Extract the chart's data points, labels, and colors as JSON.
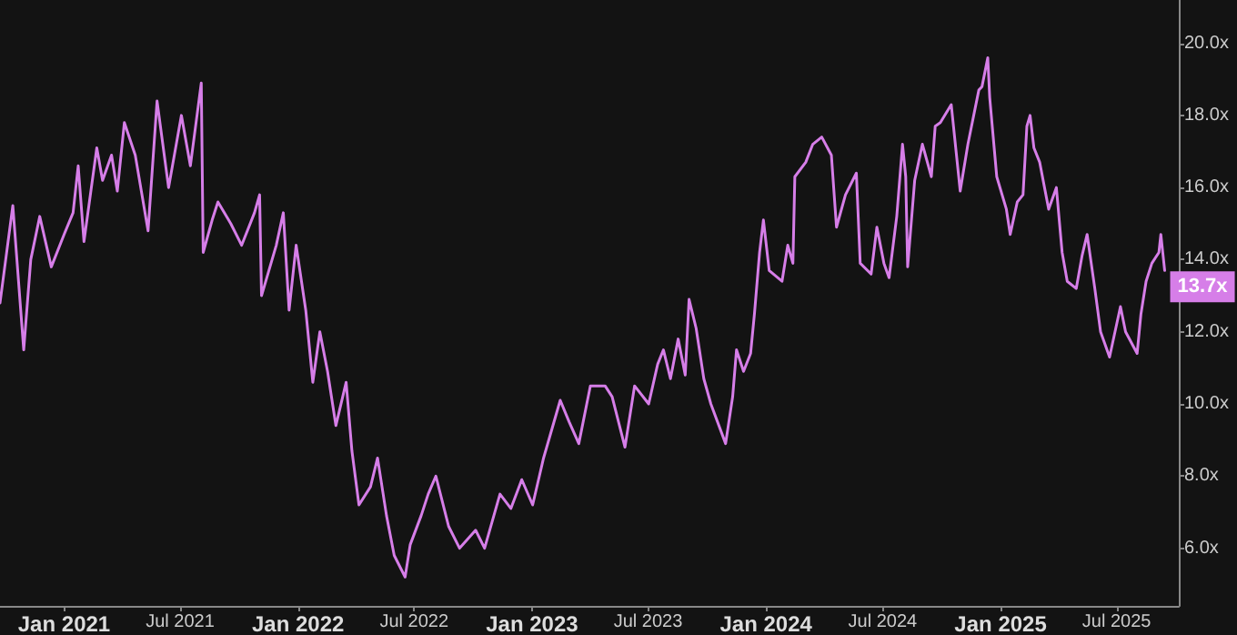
{
  "chart_data": {
    "type": "line",
    "grid": false,
    "marker": "none",
    "line_style": "solid",
    "xlim": [
      "2020-09-23",
      "2025-10-06"
    ],
    "xticks": [
      {
        "value": "2021-01-01",
        "label": "Jan 2021"
      },
      {
        "value": "2021-07-01",
        "label": "Jul 2021"
      },
      {
        "value": "2022-01-01",
        "label": "Jan 2022"
      },
      {
        "value": "2022-07-01",
        "label": "Jul 2022"
      },
      {
        "value": "2023-01-01",
        "label": "Jan 2023"
      },
      {
        "value": "2023-07-01",
        "label": "Jul 2023"
      },
      {
        "value": "2024-01-01",
        "label": "Jan 2024"
      },
      {
        "value": "2024-07-01",
        "label": "Jul 2024"
      },
      {
        "value": "2025-01-01",
        "label": "Jan 2025"
      },
      {
        "value": "2025-07-01",
        "label": "Jul 2025"
      }
    ],
    "ylim": [
      4.4,
      21.2
    ],
    "yticks": [
      {
        "value": 6,
        "label": "6.0x"
      },
      {
        "value": 8,
        "label": "8.0x"
      },
      {
        "value": 10,
        "label": "10.0x"
      },
      {
        "value": 12,
        "label": "12.0x"
      },
      {
        "value": 14,
        "label": "14.0x"
      },
      {
        "value": 16,
        "label": "16.0x"
      },
      {
        "value": 18,
        "label": "18.0x"
      },
      {
        "value": 20,
        "label": "20.0x"
      }
    ],
    "x": [
      "2020-09-23",
      "2020-10-13",
      "2020-10-30",
      "2020-11-10",
      "2020-11-24",
      "2020-12-12",
      "2021-01-01",
      "2021-01-15",
      "2021-01-23",
      "2021-02-01",
      "2021-02-21",
      "2021-03-02",
      "2021-03-16",
      "2021-03-25",
      "2021-04-05",
      "2021-04-22",
      "2021-05-12",
      "2021-05-26",
      "2021-06-13",
      "2021-07-03",
      "2021-07-17",
      "2021-08-03",
      "2021-08-06",
      "2021-08-20",
      "2021-08-29",
      "2021-09-18",
      "2021-10-05",
      "2021-10-25",
      "2021-11-02",
      "2021-11-05",
      "2021-11-28",
      "2021-12-09",
      "2021-12-18",
      "2021-12-29",
      "2022-01-13",
      "2022-01-24",
      "2022-02-04",
      "2022-02-16",
      "2022-03-01",
      "2022-03-17",
      "2022-03-26",
      "2022-04-06",
      "2022-04-24",
      "2022-05-05",
      "2022-05-19",
      "2022-05-31",
      "2022-06-17",
      "2022-06-25",
      "2022-07-12",
      "2022-07-23",
      "2022-08-04",
      "2022-08-24",
      "2022-09-10",
      "2022-10-05",
      "2022-10-19",
      "2022-11-12",
      "2022-11-29",
      "2022-12-16",
      "2023-01-02",
      "2023-01-19",
      "2023-02-14",
      "2023-02-28",
      "2023-03-15",
      "2023-04-02",
      "2023-04-25",
      "2023-05-06",
      "2023-05-26",
      "2023-06-10",
      "2023-07-02",
      "2023-07-16",
      "2023-07-25",
      "2023-08-05",
      "2023-08-17",
      "2023-08-28",
      "2023-09-03",
      "2023-09-14",
      "2023-09-26",
      "2023-10-07",
      "2023-10-30",
      "2023-11-10",
      "2023-11-16",
      "2023-11-27",
      "2023-12-08",
      "2023-12-14",
      "2023-12-22",
      "2023-12-28",
      "2024-01-06",
      "2024-01-26",
      "2024-02-04",
      "2024-02-12",
      "2024-02-15",
      "2024-03-03",
      "2024-03-14",
      "2024-03-28",
      "2024-04-12",
      "2024-04-20",
      "2024-05-04",
      "2024-05-21",
      "2024-05-27",
      "2024-06-13",
      "2024-06-22",
      "2024-07-03",
      "2024-07-11",
      "2024-07-23",
      "2024-08-01",
      "2024-08-06",
      "2024-08-09",
      "2024-08-20",
      "2024-09-01",
      "2024-09-15",
      "2024-09-21",
      "2024-09-29",
      "2024-10-16",
      "2024-10-30",
      "2024-11-11",
      "2024-11-28",
      "2024-12-03",
      "2024-12-12",
      "2024-12-15",
      "2024-12-26",
      "2025-01-10",
      "2025-01-16",
      "2025-01-27",
      "2025-02-05",
      "2025-02-11",
      "2025-02-16",
      "2025-02-22",
      "2025-03-03",
      "2025-03-17",
      "2025-03-29",
      "2025-04-07",
      "2025-04-15",
      "2025-04-29",
      "2025-05-08",
      "2025-05-16",
      "2025-05-28",
      "2025-06-06",
      "2025-06-20",
      "2025-07-07",
      "2025-07-15",
      "2025-08-02",
      "2025-08-08",
      "2025-08-16",
      "2025-08-25",
      "2025-09-05",
      "2025-09-08",
      "2025-09-14"
    ],
    "series": [
      {
        "color": "#d67ee8",
        "values": [
          12.8,
          15.5,
          11.5,
          14.0,
          15.2,
          13.8,
          14.7,
          15.3,
          16.6,
          14.5,
          17.1,
          16.2,
          16.9,
          15.9,
          17.8,
          16.9,
          14.8,
          18.4,
          16.0,
          18.0,
          16.6,
          18.9,
          14.2,
          15.1,
          15.6,
          15.0,
          14.4,
          15.3,
          15.8,
          13.0,
          14.4,
          15.3,
          12.6,
          14.4,
          12.6,
          10.6,
          12.0,
          10.9,
          9.4,
          10.6,
          8.7,
          7.2,
          7.7,
          8.5,
          6.9,
          5.8,
          5.2,
          6.1,
          6.9,
          7.5,
          8.0,
          6.6,
          6.0,
          6.5,
          6.0,
          7.5,
          7.1,
          7.9,
          7.2,
          8.5,
          10.1,
          9.5,
          8.9,
          10.5,
          10.5,
          10.2,
          8.8,
          10.5,
          10.0,
          11.1,
          11.5,
          10.7,
          11.8,
          10.8,
          12.9,
          12.1,
          10.7,
          10.0,
          8.9,
          10.2,
          11.5,
          10.9,
          11.4,
          12.5,
          14.2,
          15.1,
          13.7,
          13.4,
          14.4,
          13.9,
          16.3,
          16.7,
          17.2,
          17.4,
          16.9,
          14.9,
          15.8,
          16.4,
          13.9,
          13.6,
          14.9,
          13.9,
          13.5,
          15.2,
          17.2,
          16.3,
          13.8,
          16.2,
          17.2,
          16.3,
          17.7,
          17.8,
          18.3,
          15.9,
          17.2,
          18.7,
          18.8,
          19.6,
          18.5,
          16.3,
          15.4,
          14.7,
          15.6,
          15.8,
          17.7,
          18.0,
          17.1,
          16.7,
          15.4,
          16.0,
          14.2,
          13.4,
          13.2,
          14.1,
          14.7,
          13.2,
          12.0,
          11.3,
          12.7,
          12.0,
          11.4,
          12.5,
          13.4,
          13.9,
          14.2,
          14.7,
          13.7
        ],
        "value_labels": [
          null,
          null,
          null,
          null,
          null,
          null,
          null,
          null,
          null,
          null,
          null,
          null,
          null,
          null,
          null,
          null,
          null,
          null,
          null,
          null,
          null,
          null,
          null,
          null,
          null,
          null,
          null,
          null,
          null,
          null,
          null,
          null,
          null,
          null,
          null,
          null,
          null,
          null,
          null,
          null,
          null,
          null,
          null,
          null,
          null,
          null,
          null,
          null,
          null,
          null,
          null,
          null,
          null,
          null,
          null,
          null,
          null,
          null,
          null,
          null,
          null,
          null,
          null,
          null,
          null,
          null,
          null,
          null,
          null,
          null,
          null,
          null,
          null,
          null,
          null,
          null,
          null,
          null,
          null,
          null,
          null,
          null,
          null,
          null,
          null,
          null,
          null,
          null,
          null,
          null,
          null,
          null,
          null,
          null,
          null,
          null,
          null,
          null,
          null,
          null,
          null,
          null,
          null,
          null,
          null,
          null,
          null,
          null,
          null,
          null,
          null,
          null,
          null,
          null,
          null,
          null,
          null,
          null,
          null,
          null,
          null,
          null,
          null,
          null,
          null,
          null,
          null,
          null,
          null,
          null,
          null,
          null,
          null,
          null,
          null,
          null,
          null,
          null,
          null,
          null,
          null,
          null,
          null,
          null,
          null,
          null,
          "13.7x"
        ]
      }
    ]
  }
}
